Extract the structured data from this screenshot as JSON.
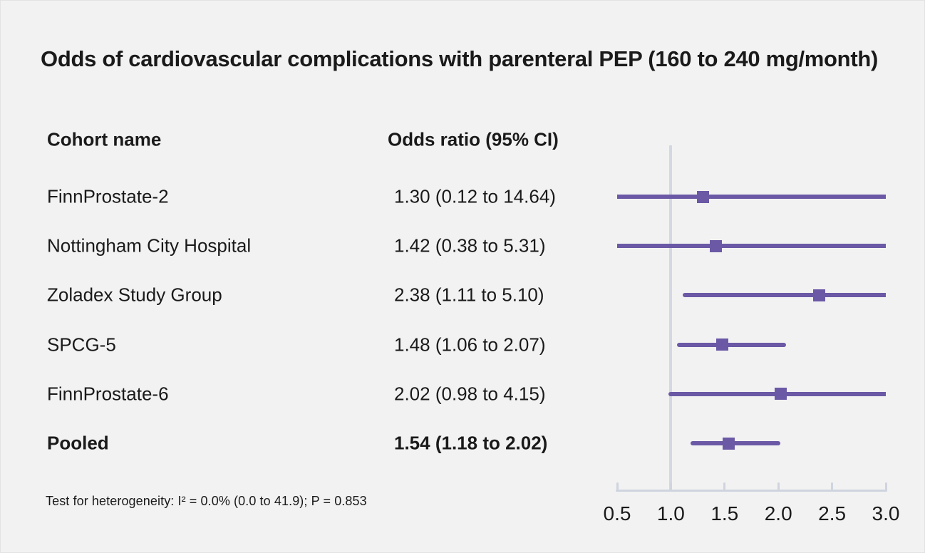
{
  "title": "Odds of cardiovascular complications with parenteral PEP (160 to 240 mg/month)",
  "columns": {
    "cohort": "Cohort name",
    "odds_ratio": "Odds ratio (95% CI)"
  },
  "footnote": "Test for heterogeneity: I² = 0.0% (0.0 to 41.9); P = 0.853",
  "colors": {
    "background": "#f2f2f2",
    "text": "#1a1a1a",
    "marker": "#6b59a6",
    "ci_line": "#6b59a6",
    "axis": "#cfd4df",
    "reference_line": "#d4d8e2"
  },
  "chart_data": {
    "type": "forest",
    "title": "Odds of cardiovascular complications with parenteral PEP (160 to 240 mg/month)",
    "xlabel": "Odds ratio (95% CI)",
    "axis": {
      "min": 0.5,
      "max": 3.0,
      "ticks": [
        0.5,
        1.0,
        1.5,
        2.0,
        2.5,
        3.0
      ],
      "tick_labels": [
        "0.5",
        "1.0",
        "1.5",
        "2.0",
        "2.5",
        "3.0"
      ],
      "reference_value": 1.0,
      "scale": "linear",
      "grid": false
    },
    "rows": [
      {
        "label": "FinnProstate-2",
        "or": 1.3,
        "ci_low": 0.12,
        "ci_high": 14.64,
        "or_text": "1.30 (0.12 to 14.64)",
        "pooled": false
      },
      {
        "label": "Nottingham City Hospital",
        "or": 1.42,
        "ci_low": 0.38,
        "ci_high": 5.31,
        "or_text": "1.42 (0.38 to 5.31)",
        "pooled": false
      },
      {
        "label": "Zoladex Study Group",
        "or": 2.38,
        "ci_low": 1.11,
        "ci_high": 5.1,
        "or_text": "2.38 (1.11 to 5.10)",
        "pooled": false
      },
      {
        "label": "SPCG-5",
        "or": 1.48,
        "ci_low": 1.06,
        "ci_high": 2.07,
        "or_text": "1.48 (1.06 to 2.07)",
        "pooled": false
      },
      {
        "label": "FinnProstate-6",
        "or": 2.02,
        "ci_low": 0.98,
        "ci_high": 4.15,
        "or_text": "2.02 (0.98 to 4.15)",
        "pooled": false
      },
      {
        "label": "Pooled",
        "or": 1.54,
        "ci_low": 1.18,
        "ci_high": 2.02,
        "or_text": "1.54 (1.18 to 2.02)",
        "pooled": true
      }
    ]
  }
}
